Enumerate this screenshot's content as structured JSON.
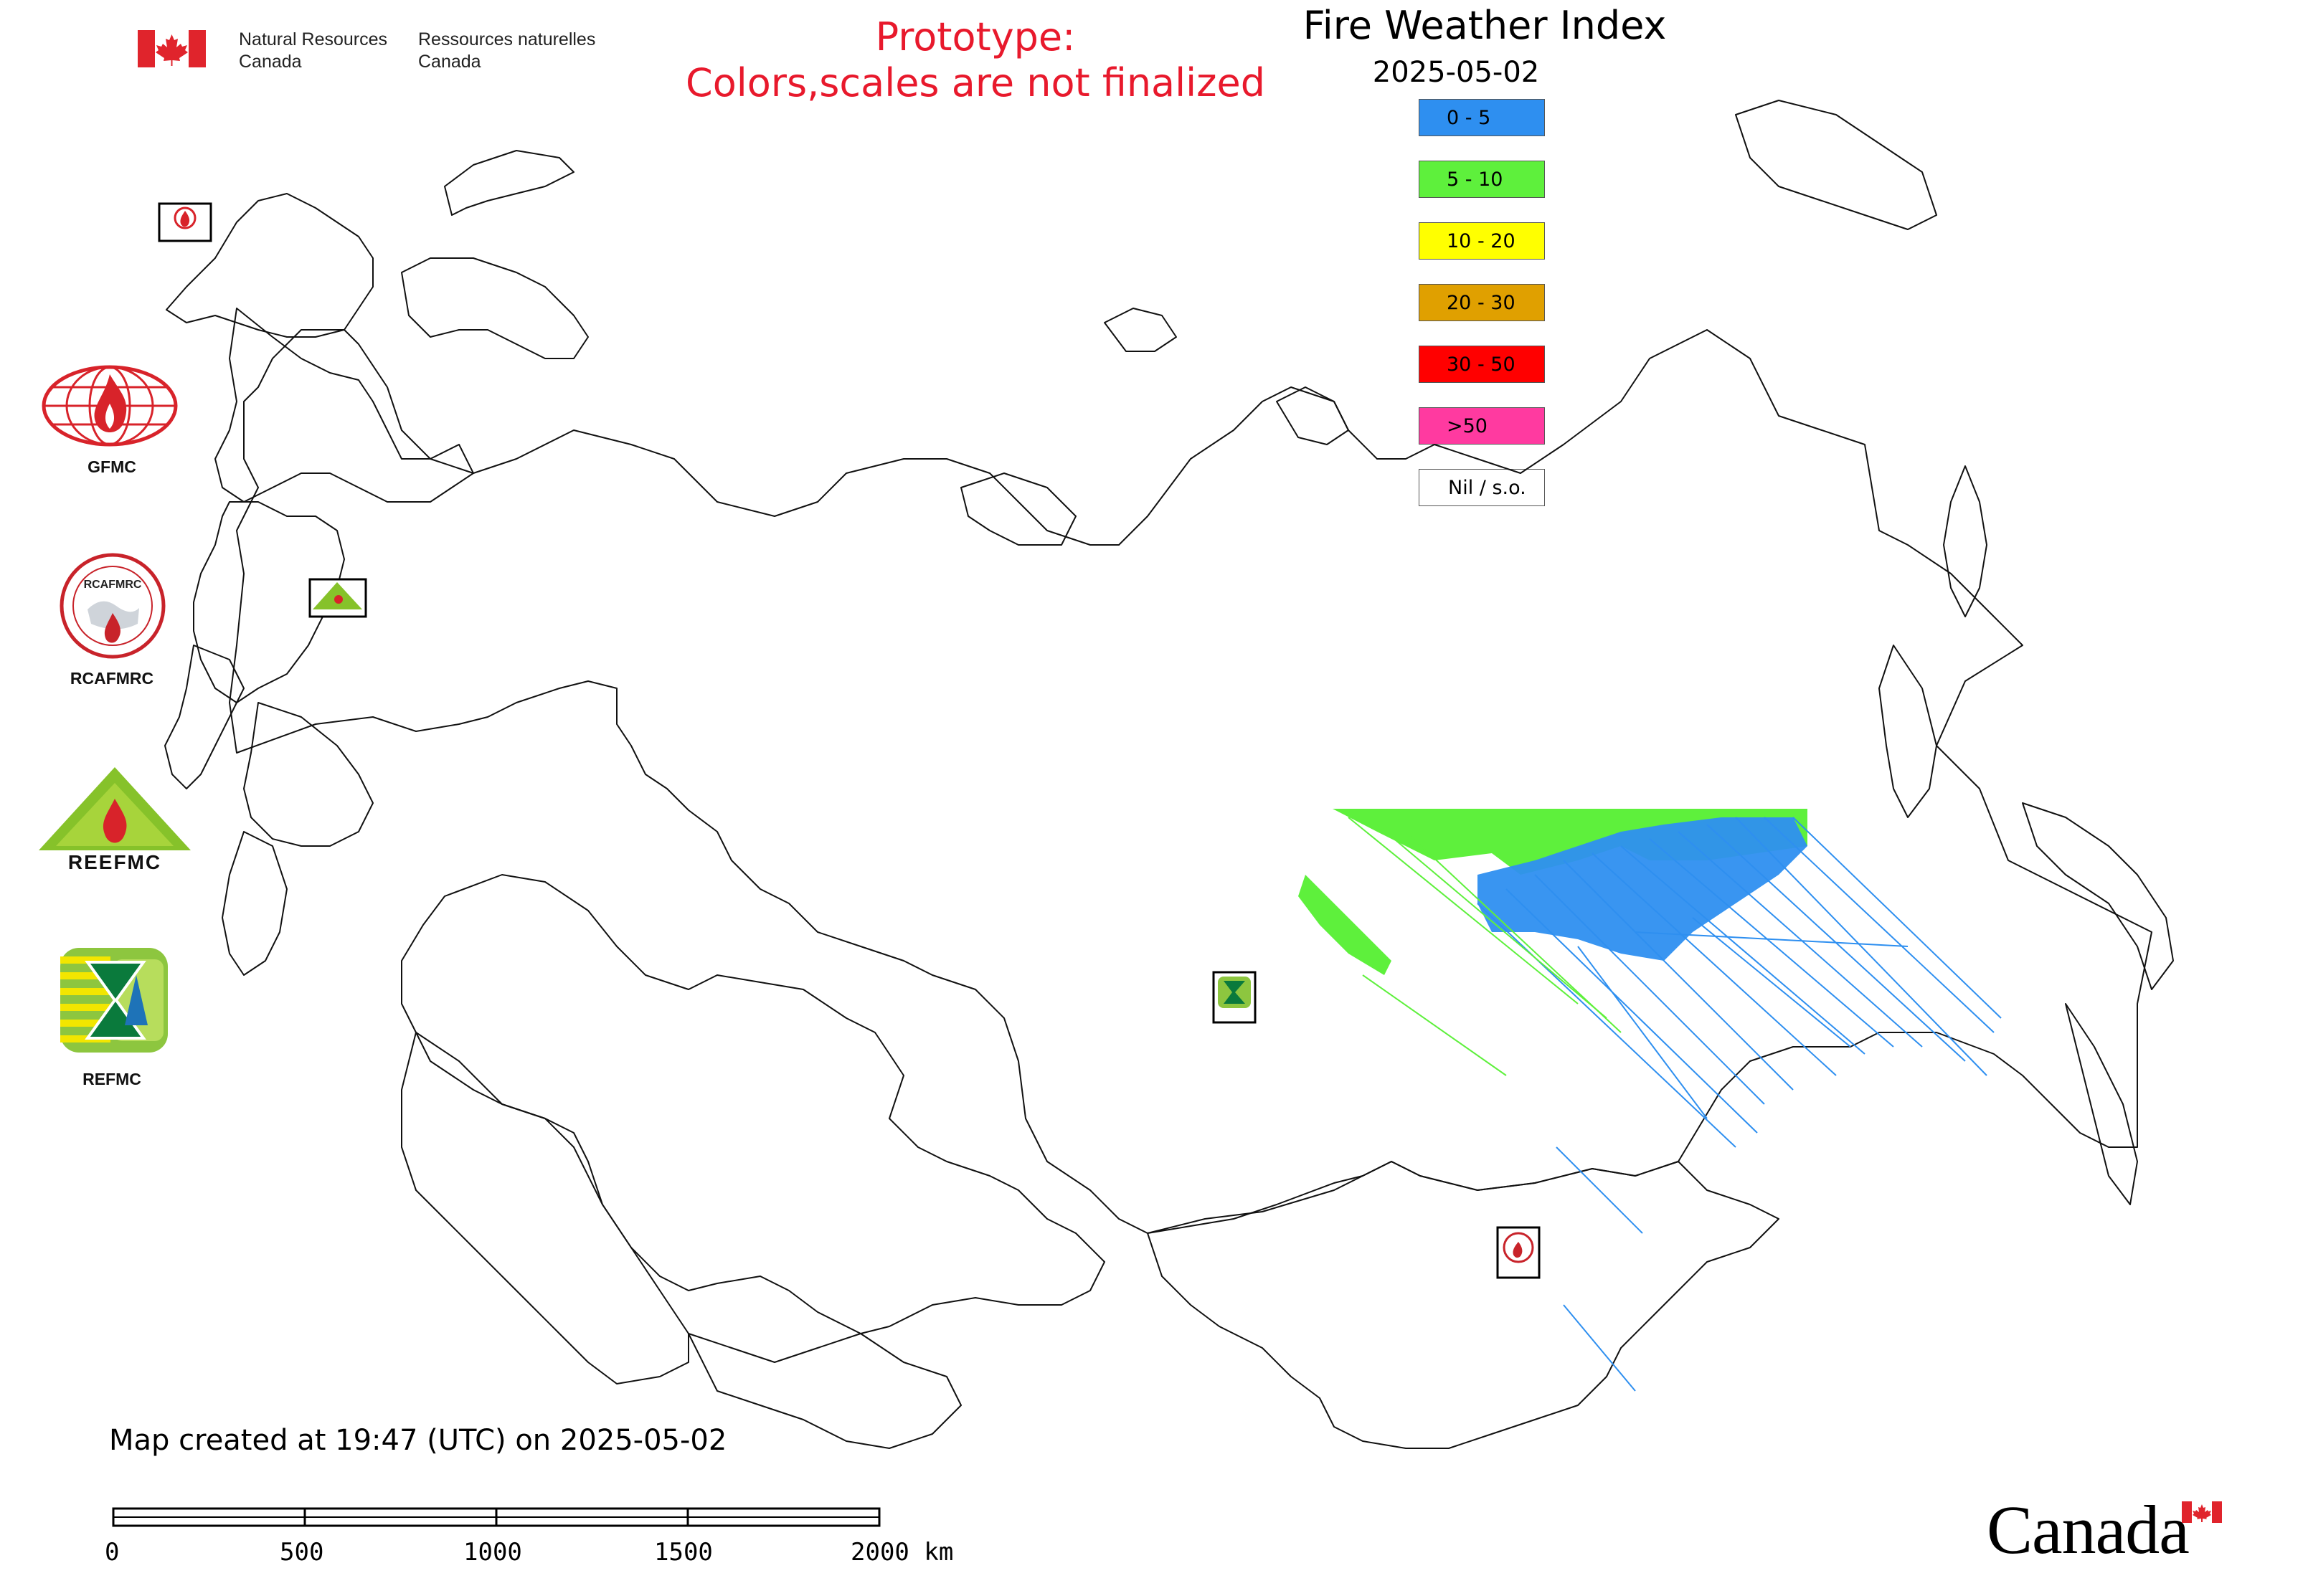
{
  "header": {
    "org_en_line1": "Natural Resources",
    "org_en_line2": "Canada",
    "org_fr_line1": "Ressources naturelles",
    "org_fr_line2": "Canada",
    "notice_line1": "Prototype:",
    "notice_line2": "Colors,scales are not finalized",
    "notice_color": "#e8192c"
  },
  "map": {
    "title": "Fire Weather Index",
    "date": "2025-05-02"
  },
  "legend": {
    "items": [
      {
        "label": "0 - 5",
        "color": "#2e8ff0"
      },
      {
        "label": "5 - 10",
        "color": "#5ef03c"
      },
      {
        "label": "10 - 20",
        "color": "#ffff00"
      },
      {
        "label": "20 - 30",
        "color": "#e0a000"
      },
      {
        "label": "30 - 50",
        "color": "#ff0000"
      },
      {
        "label": ">50",
        "color": "#ff3aa0"
      },
      {
        "label": "Nil / s.o.",
        "color": "#ffffff"
      }
    ]
  },
  "logos": [
    {
      "label": "GFMC",
      "icon": "gfmc-logo-icon"
    },
    {
      "label": "RCAFMRC",
      "icon": "rcafmrc-logo-icon"
    },
    {
      "label": "REEFMC",
      "icon": "reefmc-logo-icon"
    },
    {
      "label": "REFMC",
      "icon": "refmc-logo-icon"
    }
  ],
  "footer": {
    "created": "Map created at 19:47 (UTC) on 2025-05-02",
    "scale_labels": [
      "0",
      "500",
      "1000",
      "1500",
      "2000 km"
    ],
    "wordmark": "Canada"
  }
}
